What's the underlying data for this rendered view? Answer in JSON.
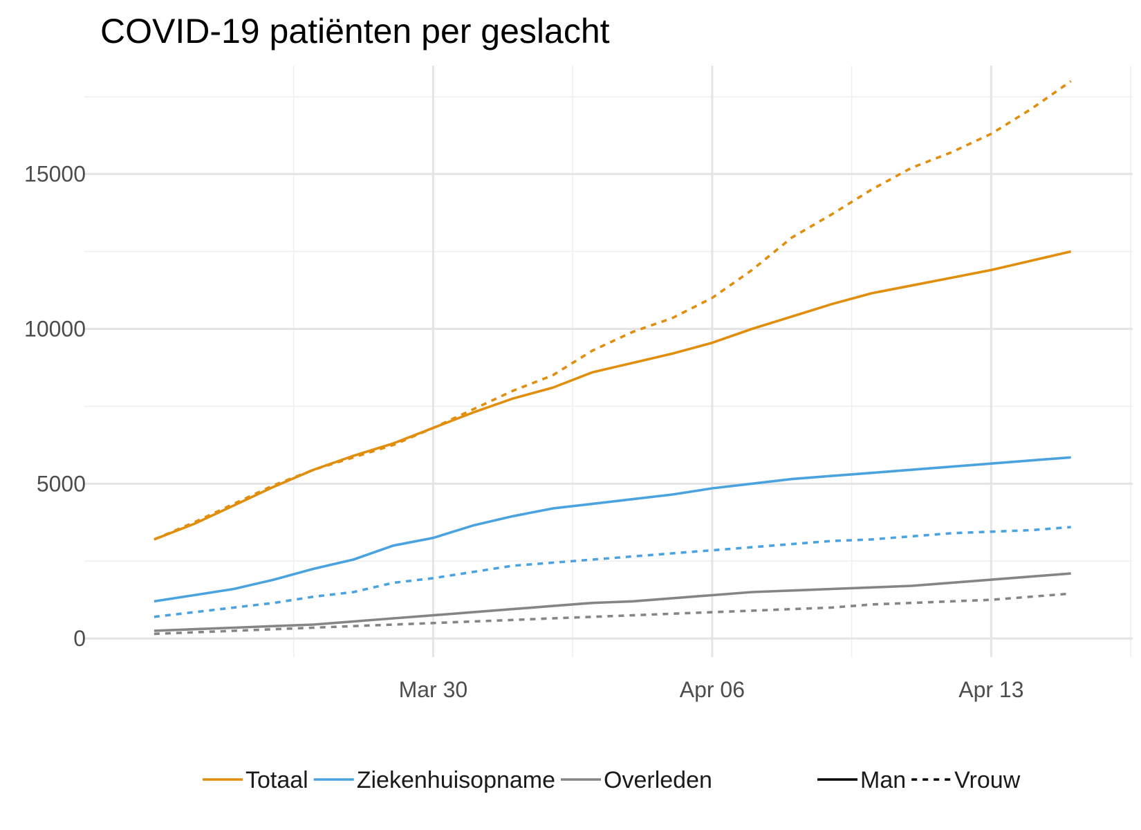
{
  "chart_data": {
    "type": "line",
    "title": "COVID-19 patiënten per geslacht",
    "xlabel": "",
    "ylabel": "",
    "ylim": [
      -600,
      18500
    ],
    "y_ticks": [
      0,
      5000,
      10000,
      15000
    ],
    "y_tick_labels": [
      "0",
      "5000",
      "10000",
      "15000"
    ],
    "x_tick_labels": [
      {
        "day": 8,
        "label": "Mar 30"
      },
      {
        "day": 15,
        "label": "Apr 06"
      },
      {
        "day": 22,
        "label": "Apr 13"
      }
    ],
    "x_minor_days": [
      4.5,
      11.5,
      18.5
    ],
    "xlim": [
      -0.75,
      25.55
    ],
    "x_dates": [
      "Mar 22",
      "Mar 23",
      "Mar 24",
      "Mar 25",
      "Mar 26",
      "Mar 27",
      "Mar 28",
      "Mar 29",
      "Mar 30",
      "Mar 31",
      "Apr 01",
      "Apr 02",
      "Apr 03",
      "Apr 04",
      "Apr 05",
      "Apr 06",
      "Apr 07",
      "Apr 08",
      "Apr 09",
      "Apr 10",
      "Apr 11",
      "Apr 12",
      "Apr 13",
      "Apr 14",
      "Apr 15",
      "Apr 16",
      "Apr 17",
      "Apr 18"
    ],
    "x_start_day": 1,
    "series": [
      {
        "name": "Totaal",
        "gender": "Man",
        "color": "#E08E0B",
        "dash": "solid",
        "values": [
          3200,
          3700,
          4300,
          4900,
          5450,
          5900,
          6300,
          6800,
          7300,
          7750,
          8100,
          8600,
          8900,
          9200,
          9550,
          10000,
          10400,
          10800,
          11150,
          11400,
          11650,
          11900,
          12200,
          12500
        ]
      },
      {
        "name": "Totaal",
        "gender": "Vrouw",
        "color": "#E08E0B",
        "dash": "dashed",
        "values": [
          3200,
          3750,
          4350,
          4950,
          5450,
          5850,
          6250,
          6800,
          7400,
          8000,
          8500,
          9300,
          9900,
          10350,
          11000,
          11900,
          12950,
          13700,
          14500,
          15200,
          15700,
          16300,
          17100,
          18000
        ]
      },
      {
        "name": "Ziekenhuisopname",
        "gender": "Man",
        "color": "#4AA3DF",
        "dash": "solid",
        "values": [
          1200,
          1400,
          1600,
          1900,
          2250,
          2550,
          3000,
          3250,
          3650,
          3950,
          4200,
          4350,
          4500,
          4650,
          4850,
          5000,
          5150,
          5250,
          5350,
          5450,
          5550,
          5650,
          5750,
          5850
        ]
      },
      {
        "name": "Ziekenhuisopname",
        "gender": "Vrouw",
        "color": "#4AA3DF",
        "dash": "dashed",
        "values": [
          700,
          850,
          1000,
          1150,
          1350,
          1500,
          1800,
          1950,
          2150,
          2350,
          2450,
          2550,
          2650,
          2750,
          2850,
          2950,
          3050,
          3150,
          3200,
          3300,
          3400,
          3450,
          3500,
          3600
        ]
      },
      {
        "name": "Overleden",
        "gender": "Man",
        "color": "#858585",
        "dash": "solid",
        "values": [
          250,
          300,
          350,
          400,
          450,
          550,
          650,
          750,
          850,
          950,
          1050,
          1150,
          1200,
          1300,
          1400,
          1500,
          1550,
          1600,
          1650,
          1700,
          1800,
          1900,
          2000,
          2100
        ]
      },
      {
        "name": "Overleden",
        "gender": "Vrouw",
        "color": "#858585",
        "dash": "dashed",
        "values": [
          150,
          200,
          250,
          300,
          350,
          400,
          450,
          500,
          550,
          600,
          650,
          700,
          750,
          800,
          850,
          900,
          950,
          1000,
          1100,
          1150,
          1200,
          1250,
          1350,
          1450
        ]
      }
    ],
    "legend": {
      "position": "bottom",
      "color_entries": [
        {
          "label": "Totaal",
          "color": "#E08E0B"
        },
        {
          "label": "Ziekenhuisopname",
          "color": "#4AA3DF"
        },
        {
          "label": "Overleden",
          "color": "#858585"
        }
      ],
      "linetype_entries": [
        {
          "label": "Man",
          "dash": "solid"
        },
        {
          "label": "Vrouw",
          "dash": "dashed"
        }
      ]
    },
    "grid": true
  }
}
